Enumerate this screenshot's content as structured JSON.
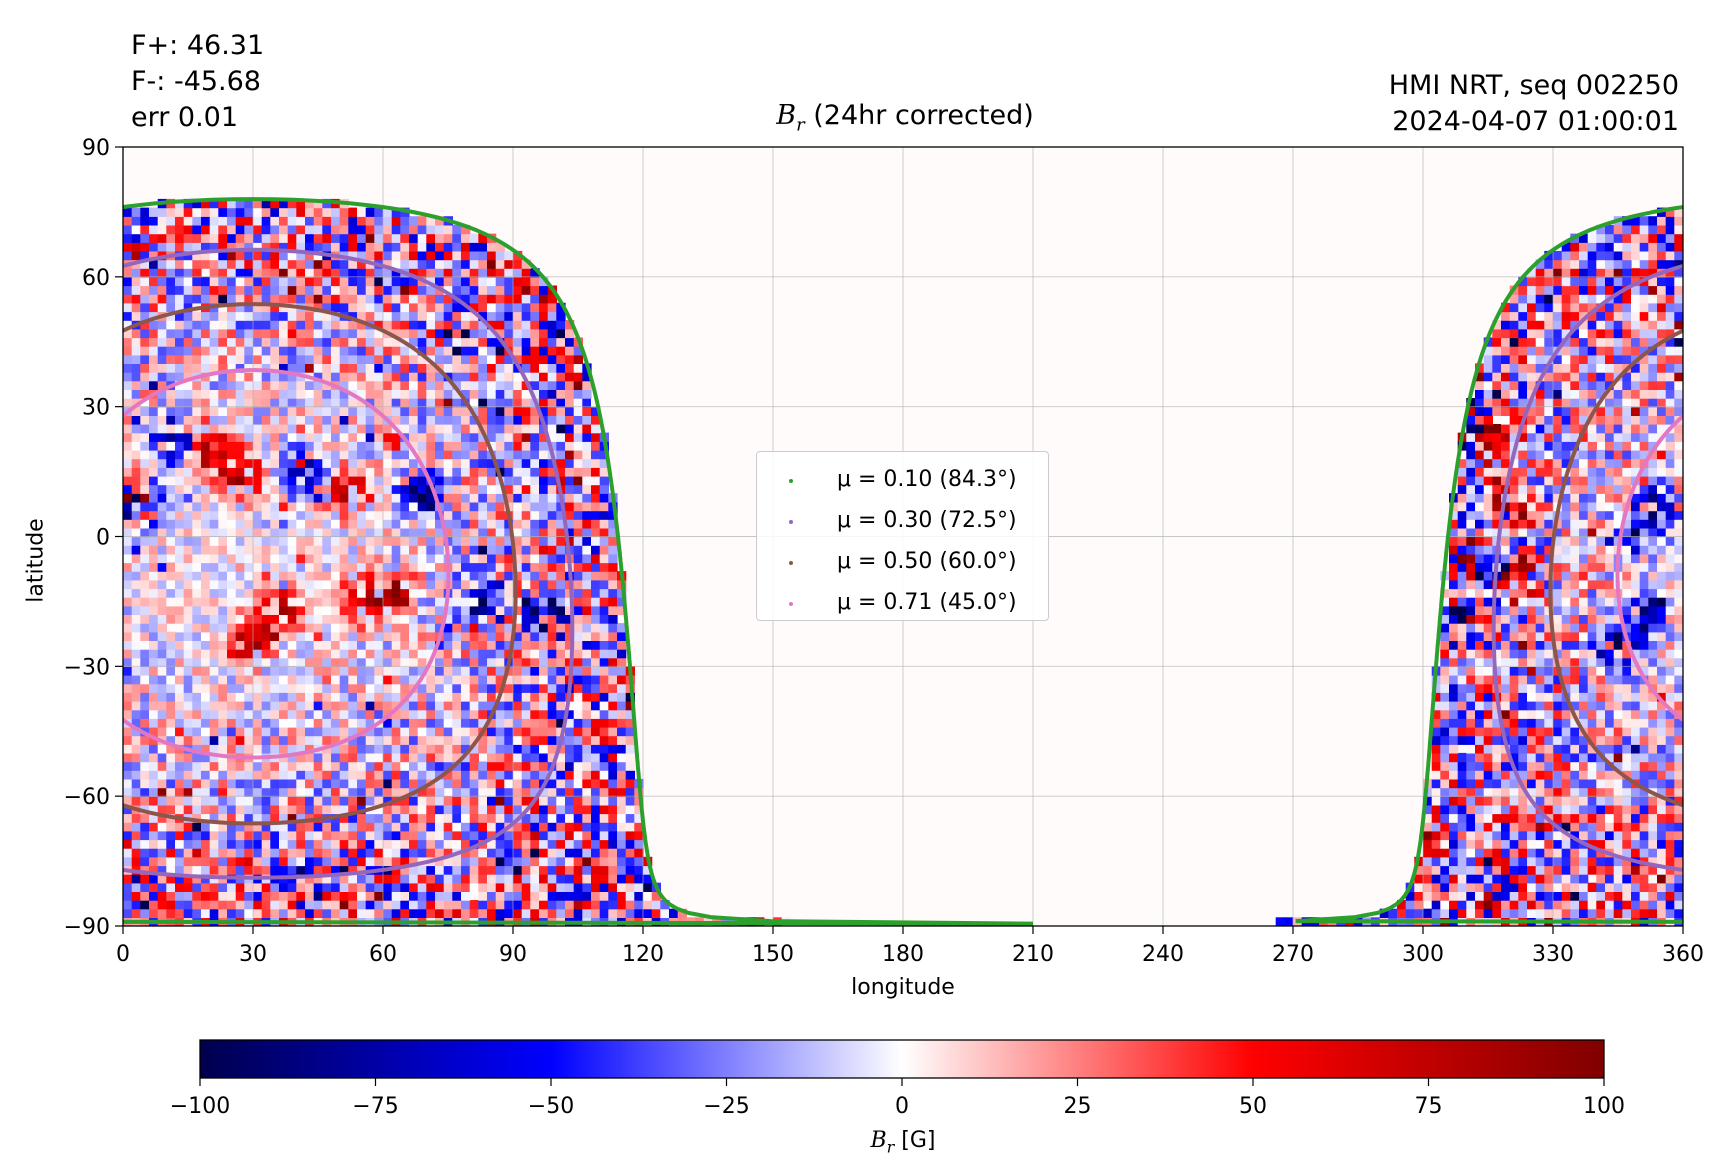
{
  "header": {
    "flux_lines": [
      "F+: 46.31",
      "F-: -45.68",
      "err 0.01"
    ],
    "source_lines": [
      "HMI NRT, seq 002250",
      "2024-04-07 01:00:01"
    ]
  },
  "chart_data": {
    "type": "heatmap",
    "title_symbol": "B",
    "title_subscript": "r",
    "title_suffix": " (24hr corrected)",
    "xlabel": "longitude",
    "ylabel": "latitude",
    "xlim": [
      0,
      360
    ],
    "ylim": [
      -90,
      90
    ],
    "x_ticks": [
      0,
      30,
      60,
      90,
      120,
      150,
      180,
      210,
      240,
      270,
      300,
      330,
      360
    ],
    "y_ticks": [
      90,
      60,
      30,
      0,
      -30,
      -60,
      -90
    ],
    "y_tick_labels": [
      "90",
      "60",
      "30",
      "0",
      "−30",
      "−60",
      "−90"
    ],
    "grid": true,
    "colormap": "seismic",
    "colorbar": {
      "min": -100,
      "max": 100,
      "ticks": [
        -100,
        -75,
        -50,
        -25,
        0,
        25,
        50,
        75,
        100
      ],
      "tick_labels": [
        "−100",
        "−75",
        "−50",
        "−25",
        "0",
        "25",
        "50",
        "75",
        "100"
      ],
      "label_symbol": "B",
      "label_subscript": "r",
      "label_unit": " [G]"
    },
    "disk_center_longitude": 30,
    "disk_center_latitude": -6.3,
    "legend_location": "center",
    "series": [
      {
        "name": "μ = 0.10 (84.3°)",
        "mu": 0.1,
        "angle_deg": 84.3,
        "color": "#2ca02c"
      },
      {
        "name": "μ = 0.30 (72.5°)",
        "mu": 0.3,
        "angle_deg": 72.5,
        "color": "#9467bd"
      },
      {
        "name": "μ = 0.50 (60.0°)",
        "mu": 0.5,
        "angle_deg": 60.0,
        "color": "#8c564b"
      },
      {
        "name": "μ = 0.71 (45.0°)",
        "mu": 0.71,
        "angle_deg": 45.0,
        "color": "#e377c2"
      }
    ],
    "active_regions": [
      {
        "lon": 2,
        "lat": 9,
        "B": 100
      },
      {
        "lon": 5,
        "lat": 8,
        "B": -90
      },
      {
        "lon": 20,
        "lat": 20,
        "B": 85
      },
      {
        "lon": 27,
        "lat": 14,
        "B": 80
      },
      {
        "lon": 12,
        "lat": 21,
        "B": -75
      },
      {
        "lon": 42,
        "lat": 15,
        "B": -70
      },
      {
        "lon": 52,
        "lat": 10,
        "B": 75
      },
      {
        "lon": 69,
        "lat": 9,
        "B": -90
      },
      {
        "lon": 37,
        "lat": -17,
        "B": 80
      },
      {
        "lon": 29,
        "lat": -24,
        "B": 85
      },
      {
        "lon": 55,
        "lat": -15,
        "B": 70
      },
      {
        "lon": 63,
        "lat": -13,
        "B": 85
      },
      {
        "lon": 82,
        "lat": -14,
        "B": -85
      },
      {
        "lon": 97,
        "lat": -18,
        "B": -75
      },
      {
        "lon": 310,
        "lat": 26,
        "B": -95
      },
      {
        "lon": 316,
        "lat": 24,
        "B": 90
      },
      {
        "lon": 316,
        "lat": -9,
        "B": -90
      },
      {
        "lon": 321,
        "lat": -9,
        "B": 95
      },
      {
        "lon": 305,
        "lat": -18,
        "B": -90
      },
      {
        "lon": 309,
        "lat": -5,
        "B": 80
      },
      {
        "lon": 318,
        "lat": 10,
        "B": 80
      },
      {
        "lon": 356,
        "lat": 8,
        "B": -85
      },
      {
        "lon": 350,
        "lat": 1,
        "B": -70
      },
      {
        "lon": 345,
        "lat": -25,
        "B": -80
      },
      {
        "lon": 352,
        "lat": -18,
        "B": -70
      }
    ]
  }
}
